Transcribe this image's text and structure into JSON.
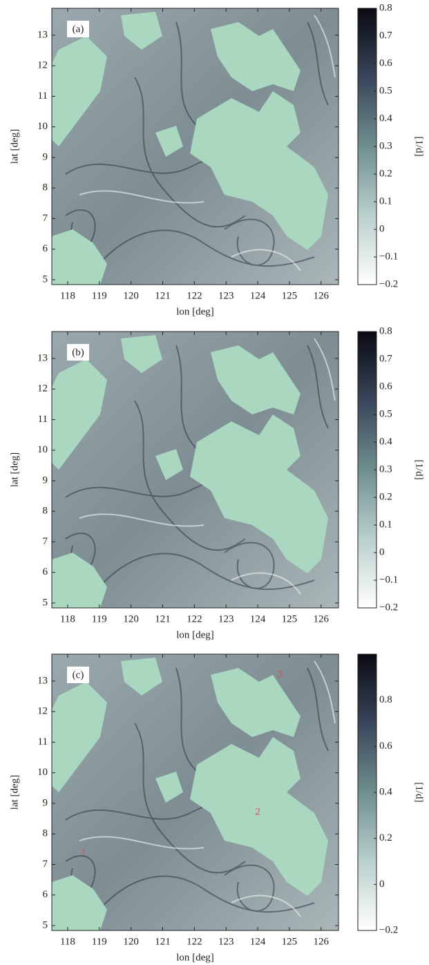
{
  "chart_data": [
    {
      "type": "heatmap",
      "panel_label": "(a)",
      "xlabel": "lon [deg]",
      "ylabel": "lat [deg]",
      "xlim": [
        117.5,
        126.55
      ],
      "ylim": [
        4.84,
        13.88
      ],
      "xticks": [
        118,
        119,
        120,
        121,
        122,
        123,
        124,
        125,
        126
      ],
      "yticks": [
        5,
        6,
        7,
        8,
        9,
        10,
        11,
        12,
        13
      ],
      "land_color": "#a9d7bf",
      "colormap": [
        "#ffffff",
        "#b9d0cc",
        "#6f8f8f",
        "#39465a",
        "#0a0a14"
      ],
      "colorbar": {
        "label": "[1/d]",
        "lim": [
          -0.2,
          0.8
        ],
        "ticks": [
          {
            "value": -0.2,
            "label": "−0.2"
          },
          {
            "value": -0.1,
            "label": "−0.1"
          },
          0,
          0.1,
          0.2,
          0.3,
          0.4,
          0.5,
          0.6,
          0.7,
          0.8
        ]
      }
    },
    {
      "type": "heatmap",
      "panel_label": "(b)",
      "xlabel": "lon [deg]",
      "ylabel": "lat [deg]",
      "xlim": [
        117.5,
        126.55
      ],
      "ylim": [
        4.84,
        13.88
      ],
      "xticks": [
        118,
        119,
        120,
        121,
        122,
        123,
        124,
        125,
        126
      ],
      "yticks": [
        5,
        6,
        7,
        8,
        9,
        10,
        11,
        12,
        13
      ],
      "land_color": "#a9d7bf",
      "colormap": [
        "#ffffff",
        "#b9d0cc",
        "#6f8f8f",
        "#39465a",
        "#0a0a14"
      ],
      "colorbar": {
        "label": "[1/d]",
        "lim": [
          -0.2,
          0.8
        ],
        "ticks": [
          {
            "value": -0.2,
            "label": "−0.2"
          },
          {
            "value": -0.1,
            "label": "−0.1"
          },
          0,
          0.1,
          0.2,
          0.3,
          0.4,
          0.5,
          0.6,
          0.7,
          0.8
        ]
      }
    },
    {
      "type": "heatmap",
      "panel_label": "(c)",
      "xlabel": "lon [deg]",
      "ylabel": "lat [deg]",
      "xlim": [
        117.5,
        126.55
      ],
      "ylim": [
        4.84,
        13.88
      ],
      "xticks": [
        118,
        119,
        120,
        121,
        122,
        123,
        124,
        125,
        126
      ],
      "yticks": [
        5,
        6,
        7,
        8,
        9,
        10,
        11,
        12,
        13
      ],
      "land_color": "#a9d7bf",
      "colormap": [
        "#ffffff",
        "#b9d0cc",
        "#6f8f8f",
        "#39465a",
        "#0a0a14"
      ],
      "annotations": [
        "1",
        "2",
        "3"
      ],
      "annotation_color": "#d9534f",
      "colorbar": {
        "label": "[1/d]",
        "lim": [
          -0.2,
          1.0
        ],
        "ticks": [
          {
            "value": -0.2,
            "label": "−0.2"
          },
          0,
          0.2,
          0.4,
          0.6,
          0.8
        ]
      }
    }
  ]
}
